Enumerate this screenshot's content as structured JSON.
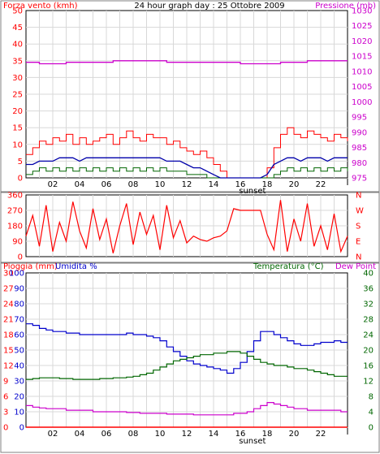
{
  "title": "24 hour graph day : 25 Ottobre 2009",
  "colors": {
    "wind": "#ff0000",
    "wind_avg": "#0000aa",
    "wind_dir": "#ff0000",
    "pressure": "#cc00cc",
    "humidity": "#0000cc",
    "temperature": "#006600",
    "dewpoint": "#cc00cc",
    "rain": "#ff0000",
    "grid": "#d8d8d8",
    "background": "#ffffff"
  },
  "hour_labels": [
    "02",
    "04",
    "06",
    "08",
    "10",
    "12",
    "14",
    "16",
    "18",
    "20",
    "22"
  ],
  "sunset_label": "sunset",
  "chart_data": [
    {
      "type": "line",
      "name": "wind-pressure",
      "left_label": "Forza vento (kmh)",
      "right_label": "Pressione (mb)",
      "left_ticks": [
        "0",
        "5",
        "10",
        "15",
        "20",
        "25",
        "30",
        "35",
        "40",
        "45",
        "50"
      ],
      "right_ticks": [
        "975",
        "980",
        "985",
        "990",
        "995",
        "1000",
        "1005",
        "1010",
        "1015",
        "1020",
        "1025",
        "1030"
      ],
      "x": [
        0,
        0.5,
        1,
        1.5,
        2,
        2.5,
        3,
        3.5,
        4,
        4.5,
        5,
        5.5,
        6,
        6.5,
        7,
        7.5,
        8,
        8.5,
        9,
        9.5,
        10,
        10.5,
        11,
        11.5,
        12,
        12.5,
        13,
        13.5,
        14,
        14.5,
        15,
        15.5,
        16,
        16.5,
        17,
        17.5,
        18,
        18.5,
        19,
        19.5,
        20,
        20.5,
        21,
        21.5,
        22,
        22.5,
        23,
        23.5,
        24
      ],
      "series": [
        {
          "key": "gust",
          "values": [
            7,
            9,
            11,
            10,
            12,
            11,
            13,
            10,
            12,
            10,
            11,
            12,
            13,
            10,
            12,
            14,
            12,
            11,
            13,
            12,
            12,
            10,
            11,
            9,
            8,
            7,
            8,
            6,
            4,
            2,
            0,
            0,
            0,
            0,
            0,
            0,
            3,
            9,
            13,
            15,
            13,
            12,
            14,
            13,
            12,
            11,
            13,
            12,
            11
          ]
        },
        {
          "key": "wind_avg",
          "values": [
            4,
            4,
            5,
            5,
            5,
            6,
            6,
            6,
            5,
            6,
            6,
            6,
            6,
            6,
            6,
            6,
            6,
            6,
            6,
            6,
            6,
            5,
            5,
            5,
            4,
            3,
            3,
            2,
            1,
            0,
            0,
            0,
            0,
            0,
            0,
            0,
            1,
            4,
            5,
            6,
            6,
            5,
            6,
            6,
            6,
            5,
            6,
            6,
            6
          ]
        },
        {
          "key": "wind_low",
          "values": [
            1,
            2,
            3,
            2,
            3,
            2,
            3,
            2,
            3,
            2,
            3,
            2,
            3,
            2,
            3,
            2,
            3,
            2,
            3,
            2,
            3,
            2,
            2,
            2,
            1,
            1,
            1,
            0,
            0,
            0,
            0,
            0,
            0,
            0,
            0,
            0,
            0,
            1,
            2,
            3,
            2,
            3,
            2,
            3,
            2,
            3,
            2,
            3,
            2
          ]
        },
        {
          "name": "Pressione (mb)",
          "values": [
            1013,
            1013,
            1012.5,
            1012.5,
            1012.5,
            1012.5,
            1013,
            1013,
            1013,
            1013,
            1013,
            1013,
            1013,
            1013.5,
            1013.5,
            1013.5,
            1013.5,
            1013.5,
            1013.5,
            1013.5,
            1013.5,
            1013,
            1013,
            1013,
            1013,
            1013,
            1013,
            1013,
            1013,
            1013,
            1013,
            1013,
            1012.5,
            1012.5,
            1012.5,
            1012.5,
            1012.5,
            1012.5,
            1013,
            1013,
            1013,
            1013,
            1013.5,
            1013.5,
            1013.5,
            1013.5,
            1013.5,
            1013.5,
            1013.5
          ]
        }
      ],
      "ylim_left": [
        0,
        50
      ],
      "ylim_right": [
        975,
        1030
      ],
      "xlim": [
        0,
        24
      ]
    },
    {
      "type": "line",
      "name": "wind-direction",
      "left_ticks": [
        "0",
        "90",
        "180",
        "270",
        "360"
      ],
      "right_ticks": [
        "N",
        "E",
        "S",
        "W",
        "N"
      ],
      "x": [
        0,
        0.5,
        1,
        1.5,
        2,
        2.5,
        3,
        3.5,
        4,
        4.5,
        5,
        5.5,
        6,
        6.5,
        7,
        7.5,
        8,
        8.5,
        9,
        9.5,
        10,
        10.5,
        11,
        11.5,
        12,
        12.5,
        13,
        13.5,
        14,
        14.5,
        15,
        15.5,
        16,
        16.5,
        17,
        17.5,
        18,
        18.5,
        19,
        19.5,
        20,
        20.5,
        21,
        21.5,
        22,
        22.5,
        23,
        23.5,
        24
      ],
      "series": [
        {
          "key": "direction",
          "values": [
            120,
            240,
            60,
            300,
            30,
            200,
            90,
            320,
            150,
            50,
            280,
            100,
            220,
            20,
            180,
            310,
            70,
            260,
            130,
            240,
            40,
            300,
            110,
            210,
            80,
            120,
            100,
            90,
            110,
            120,
            150,
            280,
            270,
            270,
            270,
            270,
            130,
            40,
            330,
            30,
            220,
            90,
            310,
            60,
            180,
            40,
            250,
            30,
            120
          ]
        }
      ],
      "ylim": [
        0,
        360
      ],
      "xlim": [
        0,
        24
      ]
    },
    {
      "type": "line",
      "name": "humidity-temperature",
      "left_outer_label": "Pioggia (mm)",
      "left_inner_label": "Umidita %",
      "right_label": "Temperatura (°C)",
      "right_extra_label": "Dew Point",
      "left_outer_ticks": [
        "0",
        "3",
        "6",
        "9",
        "12",
        "15",
        "18",
        "21",
        "24",
        "27",
        "30"
      ],
      "left_inner_ticks": [
        "0",
        "10",
        "20",
        "30",
        "40",
        "50",
        "60",
        "70",
        "80",
        "90",
        "100"
      ],
      "right_ticks": [
        "0",
        "4",
        "8",
        "12",
        "16",
        "20",
        "24",
        "28",
        "32",
        "36",
        "40"
      ],
      "x": [
        0,
        0.5,
        1,
        1.5,
        2,
        2.5,
        3,
        3.5,
        4,
        4.5,
        5,
        5.5,
        6,
        6.5,
        7,
        7.5,
        8,
        8.5,
        9,
        9.5,
        10,
        10.5,
        11,
        11.5,
        12,
        12.5,
        13,
        13.5,
        14,
        14.5,
        15,
        15.5,
        16,
        16.5,
        17,
        17.5,
        18,
        18.5,
        19,
        19.5,
        20,
        20.5,
        21,
        21.5,
        22,
        22.5,
        23,
        23.5,
        24
      ],
      "series": [
        {
          "name": "Umidita %",
          "values": [
            67,
            66,
            64,
            63,
            62,
            62,
            61,
            61,
            60,
            60,
            60,
            60,
            60,
            60,
            60,
            61,
            60,
            60,
            59,
            58,
            56,
            52,
            49,
            46,
            43,
            41,
            40,
            39,
            38,
            37,
            35,
            38,
            42,
            49,
            56,
            62,
            62,
            60,
            58,
            56,
            54,
            53,
            53,
            54,
            55,
            55,
            56,
            55,
            55
          ]
        },
        {
          "name": "Temperatura (°C)",
          "values": [
            12.4,
            12.6,
            12.8,
            12.8,
            12.8,
            12.6,
            12.6,
            12.4,
            12.4,
            12.4,
            12.4,
            12.6,
            12.6,
            12.8,
            12.8,
            13,
            13.2,
            13.6,
            14,
            14.8,
            15.6,
            16.4,
            17.2,
            17.6,
            18,
            18.4,
            18.8,
            18.8,
            19.2,
            19.2,
            19.6,
            19.6,
            19.2,
            18.4,
            17.6,
            16.8,
            16.4,
            16,
            16,
            15.6,
            15.2,
            15.2,
            14.8,
            14.4,
            14,
            13.6,
            13.2,
            13.2,
            13.2
          ]
        },
        {
          "name": "Dew Point",
          "values": [
            5.6,
            5.2,
            5,
            4.8,
            4.8,
            4.8,
            4.4,
            4.4,
            4.4,
            4.4,
            4,
            4,
            4,
            4,
            4,
            3.8,
            3.8,
            3.6,
            3.6,
            3.6,
            3.6,
            3.4,
            3.4,
            3.4,
            3.4,
            3.2,
            3.2,
            3.2,
            3.2,
            3.2,
            3.2,
            3.6,
            3.6,
            4,
            4.8,
            5.6,
            6.4,
            6,
            5.6,
            5.2,
            4.8,
            4.8,
            4.4,
            4.4,
            4.4,
            4.4,
            4.4,
            4,
            4
          ]
        },
        {
          "name": "Pioggia (mm)",
          "values": [
            0,
            0,
            0,
            0,
            0,
            0,
            0,
            0,
            0,
            0,
            0,
            0,
            0,
            0,
            0,
            0,
            0,
            0,
            0,
            0,
            0,
            0,
            0,
            0,
            0,
            0,
            0,
            0,
            0,
            0,
            0,
            0,
            0,
            0,
            0,
            0,
            0,
            0,
            0,
            0,
            0,
            0,
            0,
            0,
            0,
            0,
            0,
            0,
            0
          ]
        }
      ],
      "ylim_humidity": [
        0,
        100
      ],
      "ylim_temperature": [
        0,
        40
      ],
      "ylim_rain": [
        0,
        30
      ],
      "xlim": [
        0,
        24
      ]
    }
  ]
}
